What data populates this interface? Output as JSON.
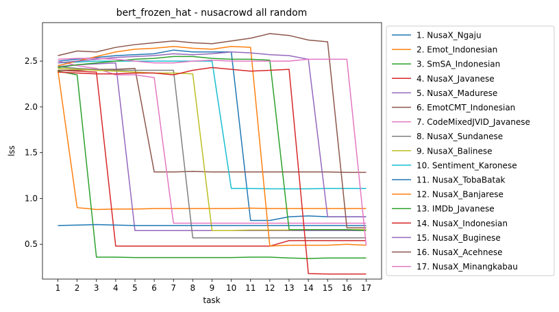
{
  "chart_data": {
    "type": "line",
    "title": "bert_frozen_hat - nusacrowd all random",
    "xlabel": "task",
    "ylabel": "lss",
    "x": [
      1,
      2,
      3,
      4,
      5,
      6,
      7,
      8,
      9,
      10,
      11,
      12,
      13,
      14,
      15,
      16,
      17
    ],
    "xlim": [
      0.2,
      17.8
    ],
    "ylim": [
      0.12,
      2.92
    ],
    "yticks": [
      0.5,
      1.0,
      1.5,
      2.0,
      2.5
    ],
    "ytick_labels": [
      "0.5",
      "1.0",
      "1.5",
      "2.0",
      "2.5"
    ],
    "grid": false,
    "legend_position": "outside-right",
    "series": [
      {
        "name": "1. NusaX_Ngaju",
        "color": "#1f77b4",
        "values": [
          2.5,
          2.52,
          2.54,
          2.56,
          2.57,
          2.58,
          2.62,
          2.6,
          2.6,
          2.6,
          0.76,
          0.76,
          0.8,
          0.81,
          0.8,
          0.8,
          0.8
        ]
      },
      {
        "name": "2. Emot_Indonesian",
        "color": "#ff7f0e",
        "values": [
          2.4,
          0.9,
          0.88,
          0.885,
          0.885,
          0.89,
          0.89,
          0.89,
          0.89,
          0.89,
          0.895,
          0.89,
          0.89,
          0.89,
          0.89,
          0.89,
          0.89
        ]
      },
      {
        "name": "3. SmSA_Indonesian",
        "color": "#2ca02c",
        "values": [
          2.39,
          2.35,
          0.36,
          0.36,
          0.355,
          0.355,
          0.355,
          0.355,
          0.355,
          0.355,
          0.36,
          0.36,
          0.35,
          0.345,
          0.35,
          0.35,
          0.35
        ]
      },
      {
        "name": "4. NusaX_Javanese",
        "color": "#d62728",
        "values": [
          2.4,
          2.39,
          2.38,
          0.48,
          0.48,
          0.48,
          0.48,
          0.48,
          0.48,
          0.48,
          0.48,
          0.48,
          0.54,
          0.54,
          0.54,
          0.54,
          0.54
        ]
      },
      {
        "name": "5. NusaX_Madurese",
        "color": "#9467bd",
        "values": [
          2.44,
          2.46,
          2.47,
          2.48,
          0.65,
          0.65,
          0.65,
          0.65,
          0.65,
          0.65,
          0.65,
          0.65,
          0.65,
          0.65,
          0.65,
          0.65,
          0.65
        ]
      },
      {
        "name": "6. EmotCMT_Indonesian",
        "color": "#8c564b",
        "values": [
          2.4,
          2.4,
          2.41,
          2.41,
          2.42,
          1.29,
          1.29,
          1.295,
          1.29,
          1.29,
          1.29,
          1.29,
          1.29,
          1.29,
          1.29,
          1.285,
          1.285
        ]
      },
      {
        "name": "7. CodeMixedJVID_Javanese",
        "color": "#e377c2",
        "values": [
          2.5,
          2.45,
          2.42,
          2.35,
          2.35,
          2.32,
          0.73,
          0.73,
          0.73,
          0.73,
          0.73,
          0.73,
          0.73,
          0.73,
          0.73,
          0.73,
          0.73
        ]
      },
      {
        "name": "8. NusaX_Sundanese",
        "color": "#7f7f7f",
        "values": [
          2.44,
          2.42,
          2.41,
          2.4,
          2.4,
          2.4,
          2.4,
          0.57,
          0.57,
          0.57,
          0.57,
          0.57,
          0.57,
          0.57,
          0.57,
          0.57,
          0.57
        ]
      },
      {
        "name": "9. NusaX_Balinese",
        "color": "#bcbd22",
        "values": [
          2.42,
          2.41,
          2.4,
          2.39,
          2.38,
          2.37,
          2.37,
          2.36,
          0.65,
          0.65,
          0.655,
          0.655,
          0.655,
          0.66,
          0.66,
          0.66,
          0.66
        ]
      },
      {
        "name": "10. Sentiment_Karonese",
        "color": "#17becf",
        "values": [
          2.48,
          2.49,
          2.5,
          2.5,
          2.5,
          2.5,
          2.5,
          2.5,
          2.5,
          1.11,
          1.11,
          1.105,
          1.105,
          1.105,
          1.11,
          1.11,
          1.11
        ]
      },
      {
        "name": "11. NusaX_TobaBatak",
        "color": "#1f77b4",
        "values": [
          0.705,
          0.71,
          0.715,
          0.71,
          0.705,
          0.705,
          0.705,
          0.705,
          0.705,
          0.705,
          0.705,
          0.705,
          0.705,
          0.705,
          0.705,
          0.705,
          0.705
        ]
      },
      {
        "name": "12. NusaX_Banjarese",
        "color": "#ff7f0e",
        "values": [
          2.45,
          2.5,
          2.55,
          2.6,
          2.63,
          2.64,
          2.66,
          2.64,
          2.63,
          2.66,
          2.65,
          0.48,
          0.49,
          0.49,
          0.49,
          0.5,
          0.49
        ]
      },
      {
        "name": "13. IMDb_Javanese",
        "color": "#2ca02c",
        "values": [
          2.43,
          2.46,
          2.48,
          2.5,
          2.52,
          2.53,
          2.55,
          2.55,
          2.53,
          2.52,
          2.52,
          2.51,
          0.66,
          0.66,
          0.66,
          0.66,
          0.65
        ]
      },
      {
        "name": "14. NusaX_Indonesian",
        "color": "#d62728",
        "values": [
          2.38,
          2.37,
          2.36,
          2.36,
          2.37,
          2.37,
          2.35,
          2.4,
          2.43,
          2.41,
          2.39,
          2.4,
          2.41,
          0.18,
          0.175,
          0.175,
          0.175
        ]
      },
      {
        "name": "15. NusaX_Buginese",
        "color": "#9467bd",
        "values": [
          2.48,
          2.5,
          2.52,
          2.54,
          2.55,
          2.56,
          2.58,
          2.57,
          2.58,
          2.6,
          2.59,
          2.57,
          2.56,
          2.52,
          0.8,
          0.8,
          0.8
        ]
      },
      {
        "name": "16. NusaX_Acehnese",
        "color": "#8c564b",
        "values": [
          2.56,
          2.61,
          2.6,
          2.65,
          2.68,
          2.7,
          2.72,
          2.7,
          2.69,
          2.72,
          2.75,
          2.8,
          2.78,
          2.73,
          2.71,
          0.68,
          0.68
        ]
      },
      {
        "name": "17. NusaX_Minangkabau",
        "color": "#e377c2",
        "values": [
          2.52,
          2.53,
          2.53,
          2.52,
          2.5,
          2.48,
          2.48,
          2.5,
          2.51,
          2.5,
          2.5,
          2.5,
          2.5,
          2.52,
          2.52,
          2.52,
          0.49
        ]
      }
    ]
  }
}
